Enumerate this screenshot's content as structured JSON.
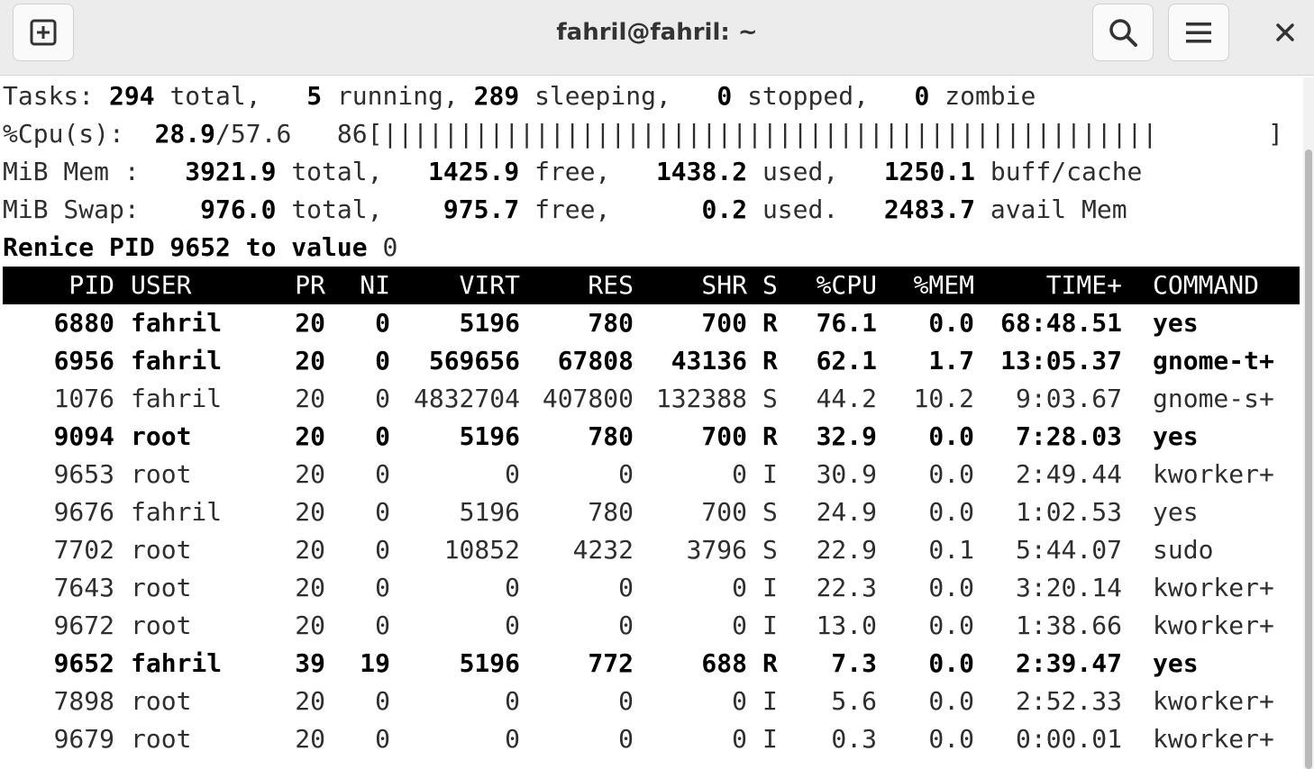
{
  "window": {
    "title": "fahril@fahril: ~",
    "icons": {
      "new_tab": "new-tab-icon",
      "search": "search-icon",
      "menu": "hamburger-menu-icon",
      "close": "close-icon"
    }
  },
  "summary": {
    "tasks": {
      "label": "Tasks:",
      "total": "294",
      "total_label": "total,",
      "running": "5",
      "running_label": "running,",
      "sleeping": "289",
      "sleeping_label": "sleeping,",
      "stopped": "0",
      "stopped_label": "stopped,",
      "zombie": "0",
      "zombie_label": "zombie"
    },
    "cpu": {
      "label": "%Cpu(s):",
      "value": "28.9",
      "rest": "/57.6",
      "pct": "86",
      "bar": "[|||||||||||||||||||||||||||||||||||||||||||||||||||",
      "bar_end": "]"
    },
    "mem": {
      "label": "MiB Mem :",
      "total": "3921.9",
      "total_label": "total,",
      "free": "1425.9",
      "free_label": "free,",
      "used": "1438.2",
      "used_label": "used,",
      "buff": "1250.1",
      "buff_label": "buff/cache"
    },
    "swap": {
      "label": "MiB Swap:",
      "total": "976.0",
      "total_label": "total,",
      "free": "975.7",
      "free_label": "free,",
      "used": "0.2",
      "used_label": "used.",
      "avail": "2483.7",
      "avail_label": "avail Mem"
    },
    "prompt": {
      "text": "Renice PID 9652 to value",
      "value": "0"
    }
  },
  "columns": [
    "PID",
    "USER",
    "PR",
    "NI",
    "VIRT",
    "RES",
    "SHR",
    "S",
    "%CPU",
    "%MEM",
    "TIME+",
    "COMMAND"
  ],
  "processes": [
    {
      "pid": "6880",
      "user": "fahril",
      "pr": "20",
      "ni": "0",
      "virt": "5196",
      "res": "780",
      "shr": "700",
      "s": "R",
      "cpu": "76.1",
      "mem": "0.0",
      "time": "68:48.51",
      "cmd": "yes",
      "bold": true
    },
    {
      "pid": "6956",
      "user": "fahril",
      "pr": "20",
      "ni": "0",
      "virt": "569656",
      "res": "67808",
      "shr": "43136",
      "s": "R",
      "cpu": "62.1",
      "mem": "1.7",
      "time": "13:05.37",
      "cmd": "gnome-t+",
      "bold": true
    },
    {
      "pid": "1076",
      "user": "fahril",
      "pr": "20",
      "ni": "0",
      "virt": "4832704",
      "res": "407800",
      "shr": "132388",
      "s": "S",
      "cpu": "44.2",
      "mem": "10.2",
      "time": "9:03.67",
      "cmd": "gnome-s+",
      "bold": false
    },
    {
      "pid": "9094",
      "user": "root",
      "pr": "20",
      "ni": "0",
      "virt": "5196",
      "res": "780",
      "shr": "700",
      "s": "R",
      "cpu": "32.9",
      "mem": "0.0",
      "time": "7:28.03",
      "cmd": "yes",
      "bold": true
    },
    {
      "pid": "9653",
      "user": "root",
      "pr": "20",
      "ni": "0",
      "virt": "0",
      "res": "0",
      "shr": "0",
      "s": "I",
      "cpu": "30.9",
      "mem": "0.0",
      "time": "2:49.44",
      "cmd": "kworker+",
      "bold": false
    },
    {
      "pid": "9676",
      "user": "fahril",
      "pr": "20",
      "ni": "0",
      "virt": "5196",
      "res": "780",
      "shr": "700",
      "s": "S",
      "cpu": "24.9",
      "mem": "0.0",
      "time": "1:02.53",
      "cmd": "yes",
      "bold": false
    },
    {
      "pid": "7702",
      "user": "root",
      "pr": "20",
      "ni": "0",
      "virt": "10852",
      "res": "4232",
      "shr": "3796",
      "s": "S",
      "cpu": "22.9",
      "mem": "0.1",
      "time": "5:44.07",
      "cmd": "sudo",
      "bold": false
    },
    {
      "pid": "7643",
      "user": "root",
      "pr": "20",
      "ni": "0",
      "virt": "0",
      "res": "0",
      "shr": "0",
      "s": "I",
      "cpu": "22.3",
      "mem": "0.0",
      "time": "3:20.14",
      "cmd": "kworker+",
      "bold": false
    },
    {
      "pid": "9672",
      "user": "root",
      "pr": "20",
      "ni": "0",
      "virt": "0",
      "res": "0",
      "shr": "0",
      "s": "I",
      "cpu": "13.0",
      "mem": "0.0",
      "time": "1:38.66",
      "cmd": "kworker+",
      "bold": false
    },
    {
      "pid": "9652",
      "user": "fahril",
      "pr": "39",
      "ni": "19",
      "virt": "5196",
      "res": "772",
      "shr": "688",
      "s": "R",
      "cpu": "7.3",
      "mem": "0.0",
      "time": "2:39.47",
      "cmd": "yes",
      "bold": true
    },
    {
      "pid": "7898",
      "user": "root",
      "pr": "20",
      "ni": "0",
      "virt": "0",
      "res": "0",
      "shr": "0",
      "s": "I",
      "cpu": "5.6",
      "mem": "0.0",
      "time": "2:52.33",
      "cmd": "kworker+",
      "bold": false
    },
    {
      "pid": "9679",
      "user": "root",
      "pr": "20",
      "ni": "0",
      "virt": "0",
      "res": "0",
      "shr": "0",
      "s": "I",
      "cpu": "0.3",
      "mem": "0.0",
      "time": "0:00.01",
      "cmd": "kworker+",
      "bold": false
    }
  ]
}
